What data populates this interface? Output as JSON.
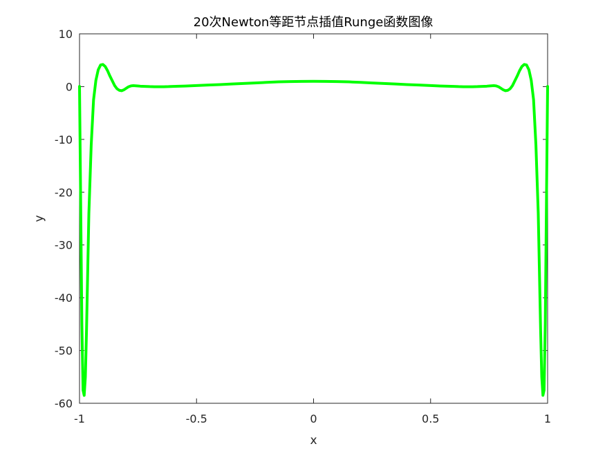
{
  "chart_data": {
    "type": "line",
    "title": "20次Newton等距节点插值Runge函数图像",
    "xlabel": "x",
    "ylabel": "y",
    "xlim": [
      -1,
      1
    ],
    "ylim": [
      -60,
      10
    ],
    "x_ticks": [
      -1,
      -0.5,
      0,
      0.5,
      1
    ],
    "x_tick_labels": [
      "-1",
      "-0.5",
      "0",
      "0.5",
      "1"
    ],
    "y_ticks": [
      -60,
      -50,
      -40,
      -30,
      -20,
      -10,
      0,
      10
    ],
    "y_tick_labels": [
      "-60",
      "-50",
      "-40",
      "-30",
      "-20",
      "-10",
      "0",
      "10"
    ],
    "grid": false,
    "series": [
      {
        "color": "#00ff00",
        "x": [
          -1.0,
          -0.995,
          -0.99,
          -0.985,
          -0.98,
          -0.975,
          -0.97,
          -0.965,
          -0.96,
          -0.95,
          -0.94,
          -0.93,
          -0.92,
          -0.91,
          -0.9,
          -0.89,
          -0.88,
          -0.87,
          -0.86,
          -0.85,
          -0.84,
          -0.83,
          -0.82,
          -0.81,
          -0.8,
          -0.79,
          -0.78,
          -0.77,
          -0.76,
          -0.75,
          -0.74,
          -0.72,
          -0.7,
          -0.68,
          -0.66,
          -0.64,
          -0.62,
          -0.6,
          -0.55,
          -0.5,
          -0.45,
          -0.4,
          -0.35,
          -0.3,
          -0.25,
          -0.2,
          -0.15,
          -0.1,
          -0.05,
          0.0,
          0.05,
          0.1,
          0.15,
          0.2,
          0.25,
          0.3,
          0.35,
          0.4,
          0.45,
          0.5,
          0.55,
          0.6,
          0.62,
          0.64,
          0.66,
          0.68,
          0.7,
          0.72,
          0.74,
          0.75,
          0.76,
          0.77,
          0.78,
          0.79,
          0.8,
          0.81,
          0.82,
          0.83,
          0.84,
          0.85,
          0.86,
          0.87,
          0.88,
          0.89,
          0.9,
          0.91,
          0.92,
          0.93,
          0.94,
          0.95,
          0.96,
          0.965,
          0.97,
          0.975,
          0.98,
          0.985,
          0.99,
          0.995,
          1.0
        ],
        "y": [
          0.04,
          -22,
          -45,
          -57.5,
          -58.5,
          -55,
          -46,
          -35,
          -24,
          -11,
          -2.5,
          1.2,
          3.2,
          4.1,
          4.2,
          3.8,
          3.0,
          2.0,
          1.1,
          0.2,
          -0.4,
          -0.7,
          -0.78,
          -0.6,
          -0.3,
          -0.02,
          0.14,
          0.18,
          0.16,
          0.12,
          0.08,
          0.04,
          0.0,
          -0.02,
          -0.03,
          -0.02,
          0.0,
          0.04,
          0.1,
          0.2,
          0.3,
          0.38,
          0.5,
          0.6,
          0.7,
          0.8,
          0.9,
          0.96,
          0.99,
          1.0,
          0.99,
          0.96,
          0.9,
          0.8,
          0.7,
          0.6,
          0.5,
          0.38,
          0.3,
          0.2,
          0.1,
          0.04,
          0.0,
          -0.02,
          -0.03,
          -0.02,
          0.0,
          0.04,
          0.08,
          0.12,
          0.16,
          0.18,
          0.14,
          -0.02,
          -0.3,
          -0.6,
          -0.78,
          -0.7,
          -0.4,
          0.2,
          1.1,
          2.0,
          3.0,
          3.8,
          4.2,
          4.1,
          3.2,
          1.2,
          -2.5,
          -11,
          -24,
          -35,
          -46,
          -55,
          -58.5,
          -57.5,
          -45,
          -22,
          0.04
        ]
      }
    ]
  }
}
